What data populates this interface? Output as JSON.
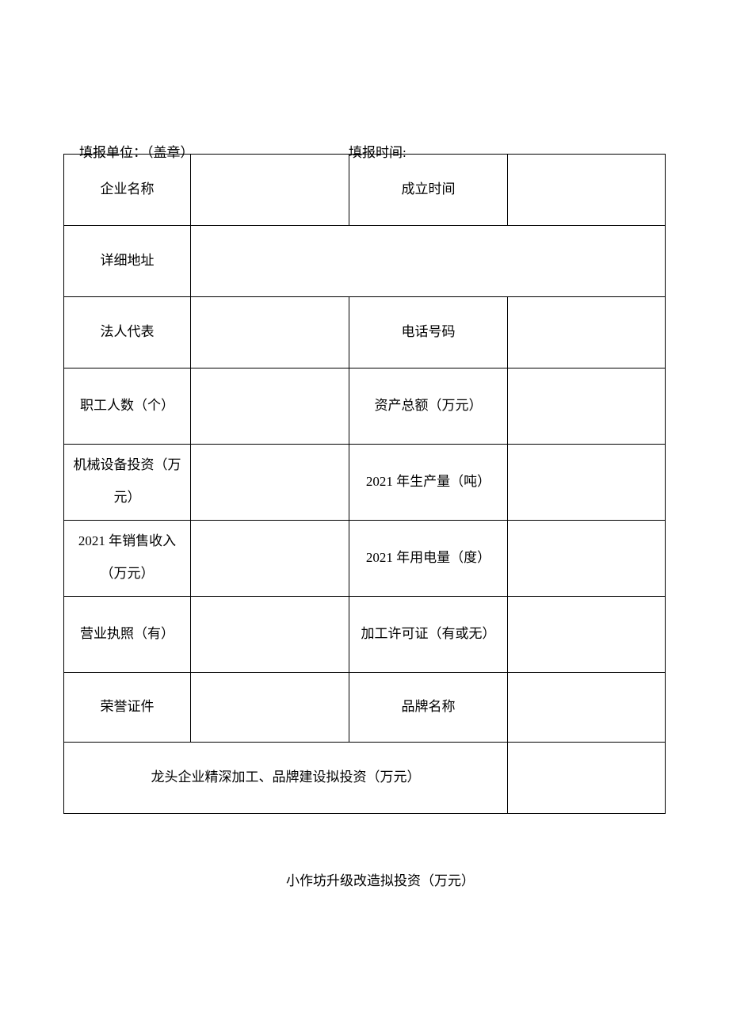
{
  "header": {
    "org_label": "填报单位：（盖章）",
    "time_label": "填报时间:"
  },
  "rows": {
    "r1": {
      "a": "企业名称",
      "b": "",
      "c": "成立时间",
      "d": ""
    },
    "r2": {
      "a": "详细地址",
      "bcd": ""
    },
    "r3": {
      "a": "法人代表",
      "b": "",
      "c": "电话号码",
      "d": ""
    },
    "r4": {
      "a": "职工人数（个）",
      "b": "",
      "c": "资产总额（万元）",
      "d": ""
    },
    "r5": {
      "a": "机械设备投资（万元）",
      "b": "",
      "c": "2021 年生产量（吨）",
      "d": ""
    },
    "r6": {
      "a": "2021 年销售收入（万元）",
      "b": "",
      "c": "2021 年用电量（度）",
      "d": ""
    },
    "r7": {
      "a": "营业执照（有）",
      "b": "",
      "c": "加工许可证（有或无）",
      "d": ""
    },
    "r8": {
      "a": "荣誉证件",
      "b": "",
      "c": "品牌名称",
      "d": ""
    },
    "r9": {
      "abc": "龙头企业精深加工、品牌建设拟投资（万元）",
      "d": ""
    }
  },
  "footer": "小作坊升级改造拟投资（万元）"
}
